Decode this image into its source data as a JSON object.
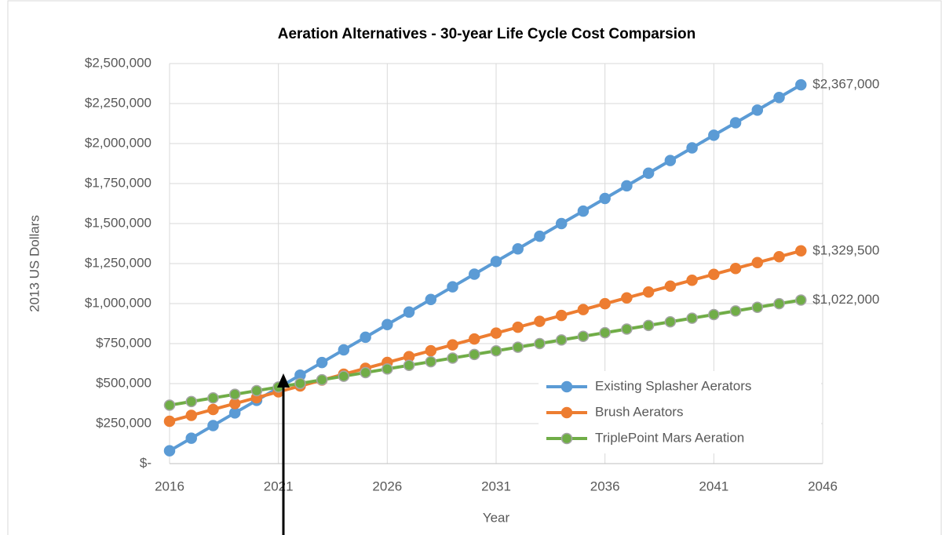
{
  "chart_data": {
    "type": "line",
    "title": "Aeration Alternatives - 30-year Life Cycle Cost Comparsion",
    "x_label": "Year",
    "y_label": "2013 US Dollars",
    "x": [
      2016,
      2017,
      2018,
      2019,
      2020,
      2021,
      2022,
      2023,
      2024,
      2025,
      2026,
      2027,
      2028,
      2029,
      2030,
      2031,
      2032,
      2033,
      2034,
      2035,
      2036,
      2037,
      2038,
      2039,
      2040,
      2041,
      2042,
      2043,
      2044,
      2045
    ],
    "xlim": [
      2016,
      2046
    ],
    "xticks": [
      2016,
      2021,
      2026,
      2031,
      2036,
      2041,
      2046
    ],
    "ylim": [
      0,
      2500000
    ],
    "yticks": [
      {
        "value": 0,
        "label": "$-"
      },
      {
        "value": 250000,
        "label": "$250,000"
      },
      {
        "value": 500000,
        "label": "$500,000"
      },
      {
        "value": 750000,
        "label": "$750,000"
      },
      {
        "value": 1000000,
        "label": "$1,000,000"
      },
      {
        "value": 1250000,
        "label": "$1,250,000"
      },
      {
        "value": 1500000,
        "label": "$1,500,000"
      },
      {
        "value": 1750000,
        "label": "$1,750,000"
      },
      {
        "value": 2000000,
        "label": "$2,000,000"
      },
      {
        "value": 2250000,
        "label": "$2,250,000"
      },
      {
        "value": 2500000,
        "label": "$2,500,000"
      }
    ],
    "grid": true,
    "legend": "lower right",
    "series": [
      {
        "name": "Existing Splasher Aerators",
        "color": "#5b9bd5",
        "values": [
          80000,
          159000,
          238000,
          317000,
          395000,
          474000,
          553000,
          632000,
          711000,
          790000,
          869000,
          947000,
          1026000,
          1105000,
          1184000,
          1263000,
          1342000,
          1421000,
          1500000,
          1578000,
          1657000,
          1736000,
          1815000,
          1894000,
          1973000,
          2052000,
          2130000,
          2209000,
          2288000,
          2367000
        ],
        "value_labels": [
          null,
          null,
          null,
          null,
          null,
          null,
          null,
          null,
          null,
          null,
          null,
          null,
          null,
          null,
          null,
          null,
          null,
          null,
          null,
          null,
          null,
          null,
          null,
          null,
          null,
          null,
          null,
          null,
          null,
          "$2,367,000"
        ]
      },
      {
        "name": "Brush Aerators",
        "color": "#ed7d31",
        "values": [
          265000,
          301700,
          338400,
          375100,
          411800,
          448500,
          485200,
          521900,
          558700,
          595400,
          632100,
          668800,
          705500,
          742200,
          778900,
          815600,
          852300,
          889000,
          925700,
          962400,
          999100,
          1035800,
          1072600,
          1109300,
          1146000,
          1182700,
          1219400,
          1256100,
          1292800,
          1329500
        ],
        "value_labels": [
          null,
          null,
          null,
          null,
          null,
          null,
          null,
          null,
          null,
          null,
          null,
          null,
          null,
          null,
          null,
          null,
          null,
          null,
          null,
          null,
          null,
          null,
          null,
          null,
          null,
          null,
          null,
          null,
          null,
          "$1,329,500"
        ]
      },
      {
        "name": "TriplePoint Mars Aeration",
        "color": "#70ad47",
        "values": [
          365000,
          387700,
          410300,
          433000,
          455600,
          478300,
          500900,
          523600,
          546200,
          568900,
          591600,
          614200,
          636900,
          659500,
          682200,
          704800,
          727500,
          750100,
          772800,
          795400,
          818100,
          840800,
          863400,
          886100,
          908700,
          931400,
          954000,
          976700,
          999300,
          1022000
        ],
        "value_labels": [
          null,
          null,
          null,
          null,
          null,
          null,
          null,
          null,
          null,
          null,
          null,
          null,
          null,
          null,
          null,
          null,
          null,
          null,
          null,
          null,
          null,
          null,
          null,
          null,
          null,
          null,
          null,
          null,
          null,
          "$1,022,000"
        ]
      }
    ]
  }
}
